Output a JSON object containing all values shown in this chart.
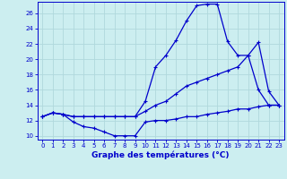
{
  "xlabel": "Graphe des températures (°C)",
  "xlim": [
    -0.5,
    23.5
  ],
  "ylim": [
    9.5,
    27.5
  ],
  "xticks": [
    0,
    1,
    2,
    3,
    4,
    5,
    6,
    7,
    8,
    9,
    10,
    11,
    12,
    13,
    14,
    15,
    16,
    17,
    18,
    19,
    20,
    21,
    22,
    23
  ],
  "yticks": [
    10,
    12,
    14,
    16,
    18,
    20,
    22,
    24,
    26
  ],
  "bg_color": "#cceef0",
  "line_color": "#0000cc",
  "grid_color": "#b0d8dc",
  "line1_x": [
    0,
    1,
    2,
    3,
    4,
    5,
    6,
    7,
    8,
    9,
    10,
    11,
    12,
    13,
    14,
    15,
    16,
    17,
    18,
    19,
    20,
    21,
    22,
    23
  ],
  "line1_y": [
    12.5,
    13.0,
    12.8,
    11.8,
    11.2,
    11.0,
    10.5,
    10.0,
    10.0,
    10.0,
    11.8,
    12.0,
    12.0,
    12.2,
    12.5,
    12.5,
    12.8,
    13.0,
    13.2,
    13.5,
    13.5,
    13.8,
    14.0,
    14.0
  ],
  "line2_x": [
    0,
    1,
    2,
    3,
    4,
    5,
    6,
    7,
    8,
    9,
    10,
    11,
    12,
    13,
    14,
    15,
    16,
    17,
    18,
    19,
    20,
    21,
    22,
    23
  ],
  "line2_y": [
    12.5,
    13.0,
    12.8,
    12.5,
    12.5,
    12.5,
    12.5,
    12.5,
    12.5,
    12.5,
    13.2,
    14.0,
    14.5,
    15.5,
    16.5,
    17.0,
    17.5,
    18.0,
    18.5,
    19.0,
    20.5,
    22.2,
    15.8,
    14.0
  ],
  "line3_x": [
    0,
    1,
    2,
    3,
    4,
    5,
    6,
    7,
    8,
    9,
    10,
    11,
    12,
    13,
    14,
    15,
    16,
    17,
    18,
    19,
    20,
    21,
    22,
    23
  ],
  "line3_y": [
    12.5,
    13.0,
    12.8,
    12.5,
    12.5,
    12.5,
    12.5,
    12.5,
    12.5,
    12.5,
    14.5,
    19.0,
    20.5,
    22.5,
    25.0,
    27.0,
    27.2,
    27.2,
    22.3,
    20.5,
    20.5,
    16.0,
    14.0,
    14.0
  ]
}
